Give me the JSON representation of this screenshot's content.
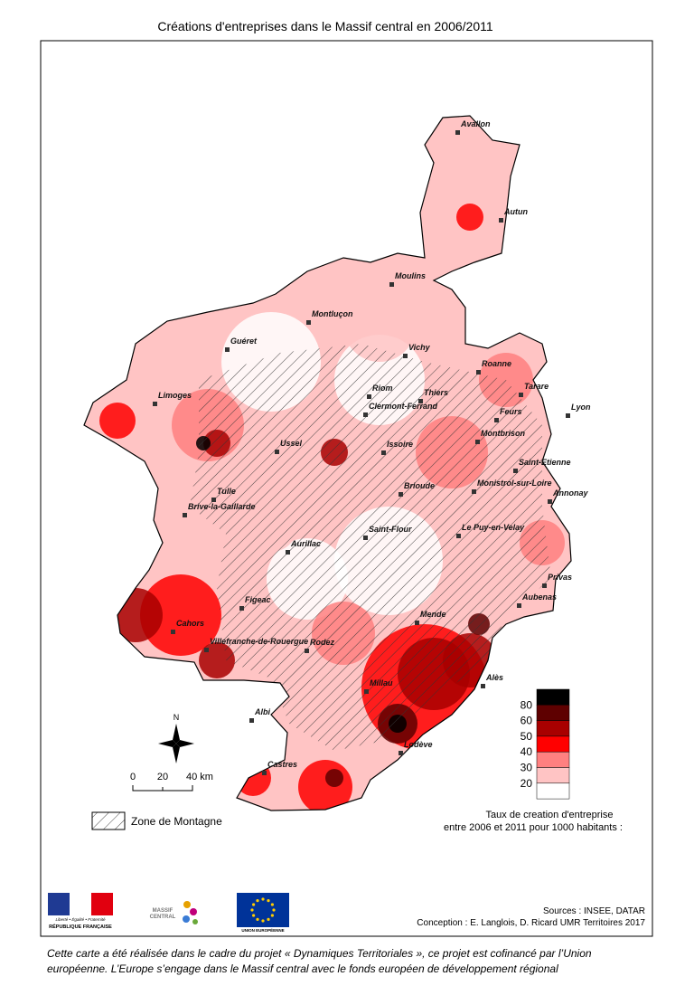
{
  "title": "Créations d'entreprises dans le Massif central en 2006/2011",
  "cities": [
    "Avallon",
    "Autun",
    "Moulins",
    "Montluçon",
    "Guéret",
    "Vichy",
    "Roanne",
    "Limoges",
    "Riom",
    "Thiers",
    "Tarare",
    "Lyon",
    "Clermont-Ferrand",
    "Feurs",
    "Montbrison",
    "Ussel",
    "Issoire",
    "Saint-Etienne",
    "Tulle",
    "Brioude",
    "Monistrol-sur-Loire",
    "Annonay",
    "Brive-la-Gaillarde",
    "Saint-Flour",
    "Le Puy-en-Velay",
    "Aurillac",
    "Privas",
    "Aubenas",
    "Figeac",
    "Cahors",
    "Mende",
    "Villefranche-de-Rouergue",
    "Rodez",
    "Alès",
    "Millau",
    "Albi",
    "Lodève",
    "Castres"
  ],
  "north": "N",
  "scale": [
    "0",
    "20",
    "40 km"
  ],
  "zone_legend": "Zone de Montagne",
  "legend": {
    "breaks": [
      80,
      60,
      50,
      40,
      30,
      20
    ],
    "colors": [
      "#000000",
      "#5e0000",
      "#a80000",
      "#ff0000",
      "#ff8080",
      "#ffc4c4",
      "#ffffff"
    ],
    "caption": [
      "Taux de creation d'entreprise",
      "entre 2006 et 2011 pour 1000 habitants :"
    ]
  },
  "sources": [
    "Sources : INSEE, DATAR",
    "Conception : E. Langlois, D. Ricard UMR Territoires 2017"
  ],
  "logos": {
    "rf_motto": "Liberté • Égalité • Fraternité",
    "rf": "RÉPUBLIQUE FRANÇAISE",
    "massif": [
      "MASSIF",
      "CENTRAL"
    ],
    "eu": "UNION EUROPÉENNE"
  },
  "footer": [
    "Cette carte a été réalisée dans le cadre du projet « Dynamiques Territoriales », ce projet est cofinancé par l’Union",
    "européenne. L’Europe s’engage dans le Massif central avec le fonds européen de développement régional"
  ]
}
